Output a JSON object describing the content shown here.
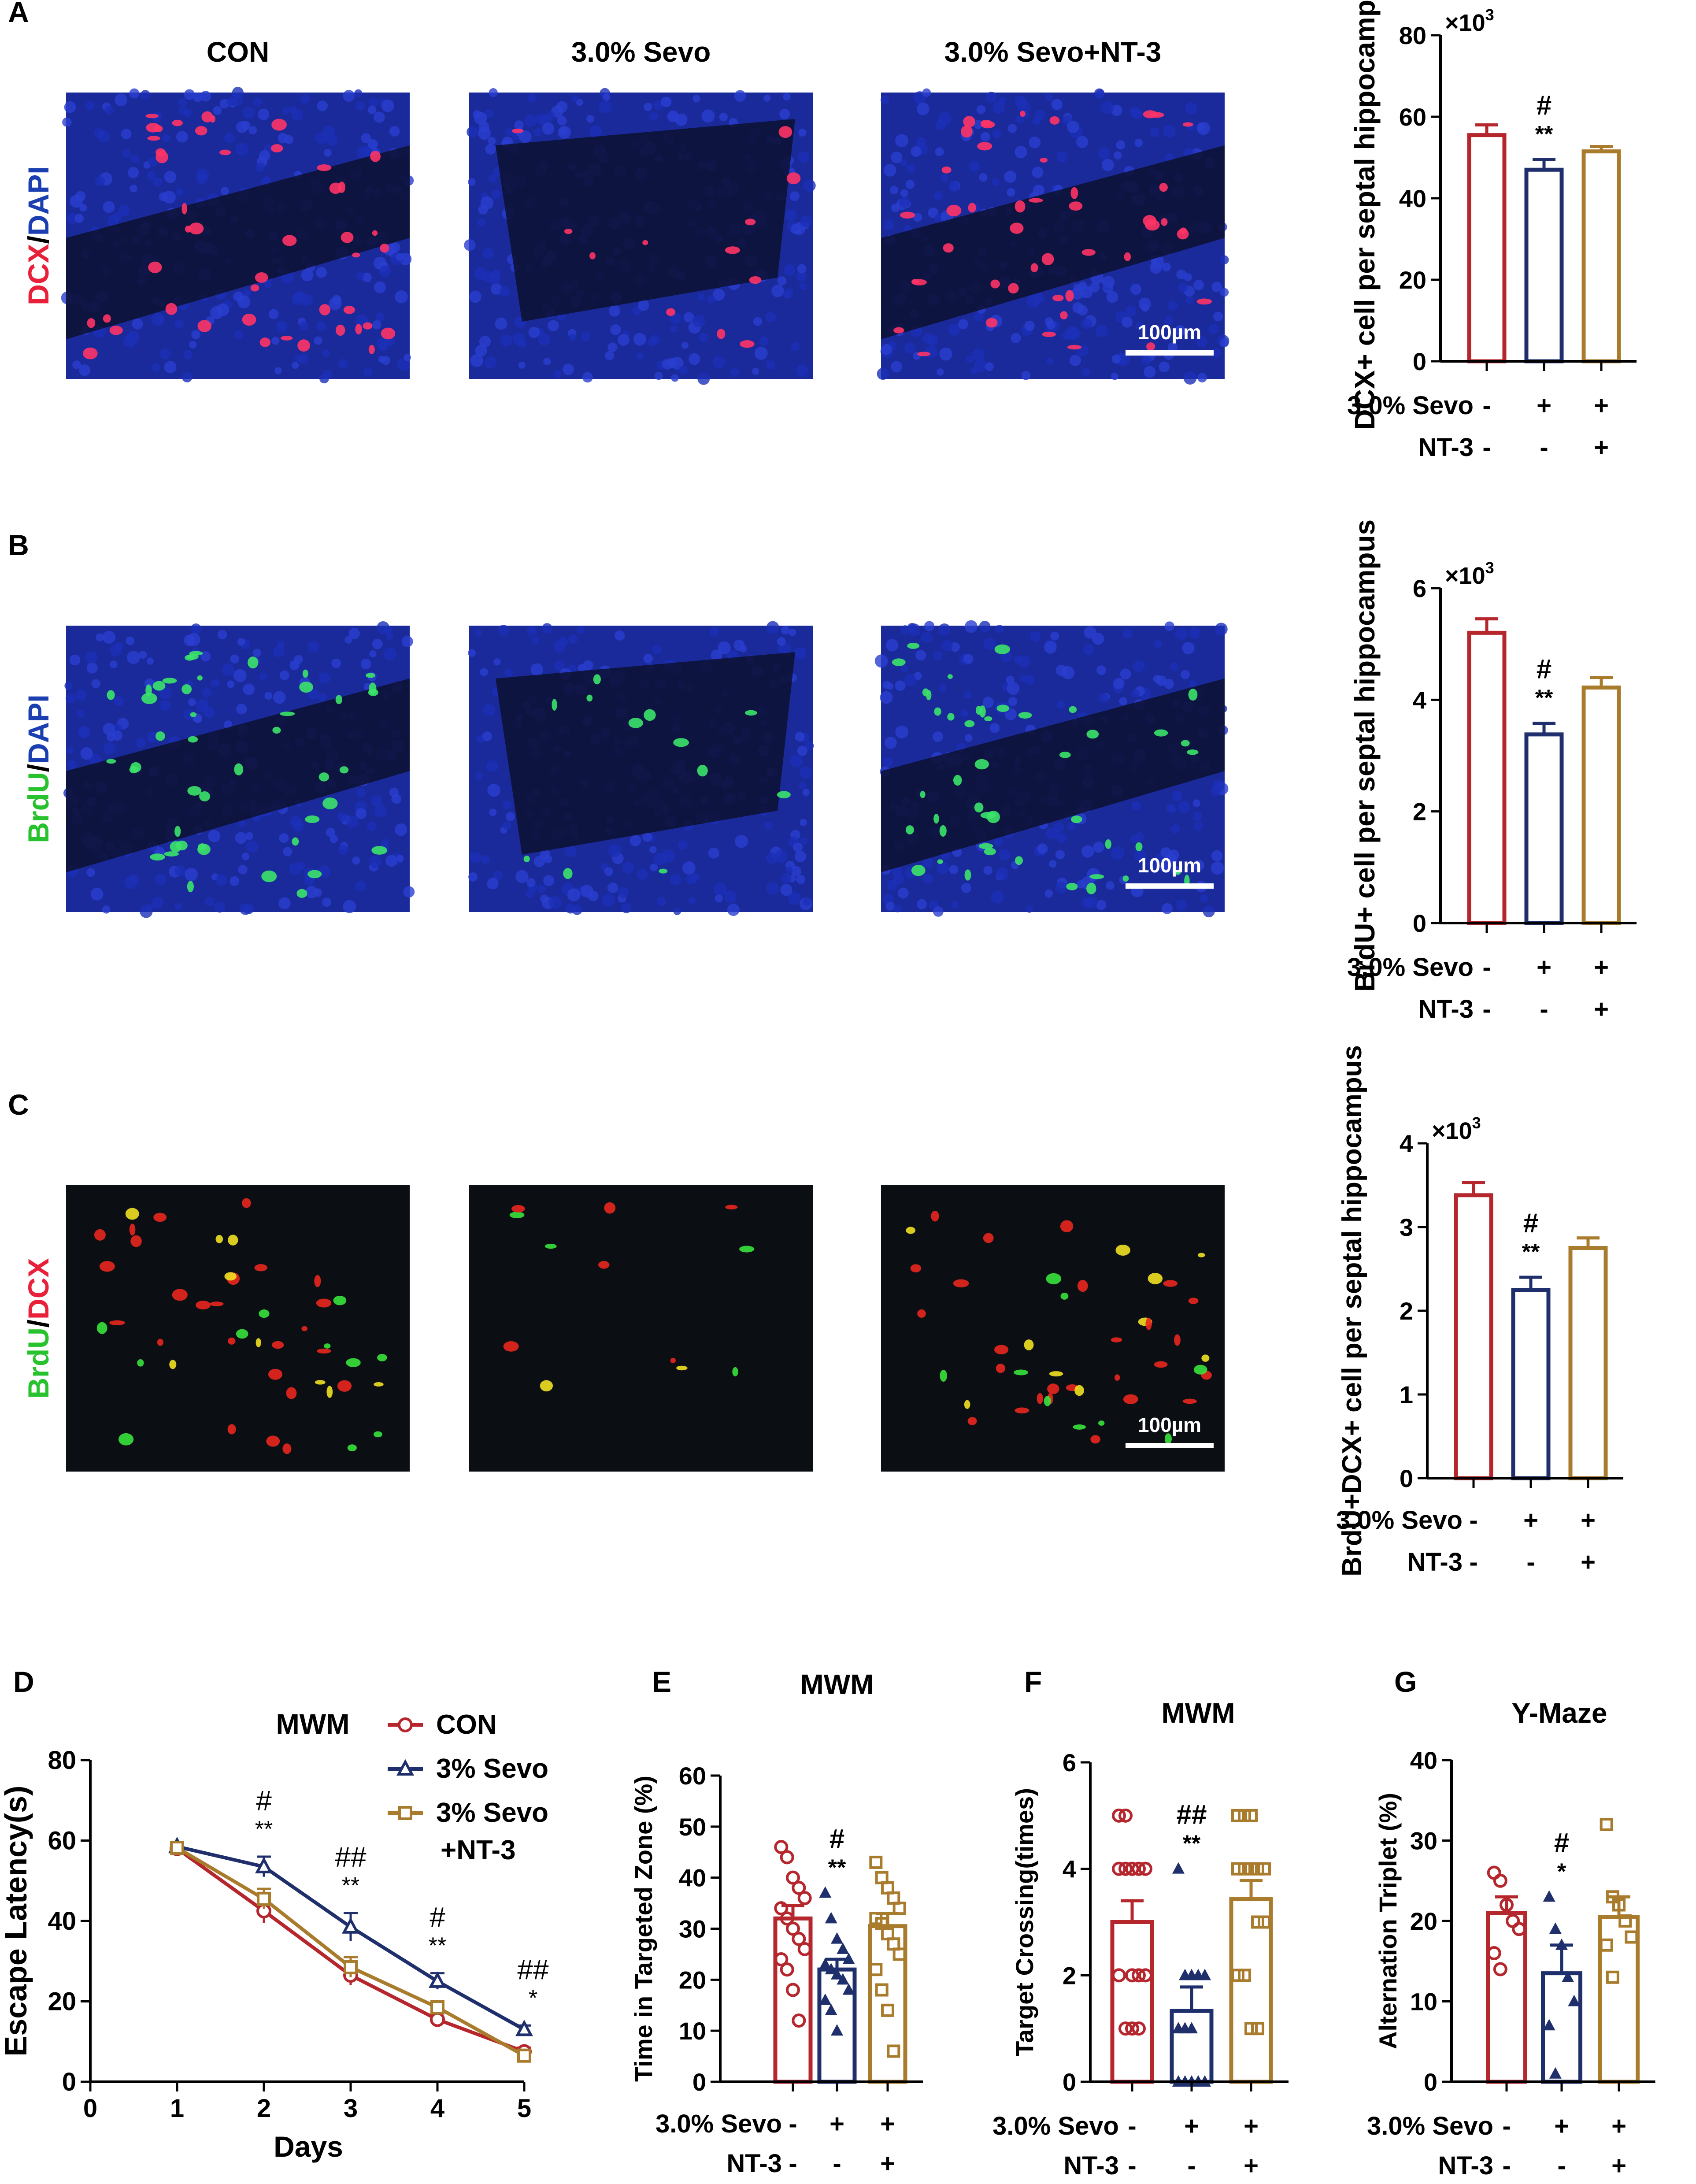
{
  "colors": {
    "con": "#b5262d",
    "sevo": "#1f2f6b",
    "nt3": "#a97b2c",
    "dapi_bg": "#1a2a9a",
    "dark_bg": "#0b0f14",
    "scale": "#ffffff",
    "red_label": "#e8203a",
    "green_label": "#27c22d",
    "blue_label": "#1b3fb0"
  },
  "panels_img": {
    "columns": [
      "CON",
      "3.0% Sevo",
      "3.0% Sevo+NT-3"
    ],
    "scale_bar": "100µm",
    "rows": [
      {
        "letter": "A",
        "stain1": "DCX",
        "sep": "/",
        "stain2": "DAPI",
        "bg": "dapi",
        "marker": "red"
      },
      {
        "letter": "B",
        "stain1": "BrdU",
        "sep": "/",
        "stain2": "DAPI",
        "bg": "dapi",
        "marker": "green"
      },
      {
        "letter": "C",
        "stain1": "BrdU",
        "sep": "/",
        "stain2": "DCX",
        "bg": "dark",
        "marker": "mixed"
      }
    ]
  },
  "group_rows": {
    "row1_label": "3.0% Sevo",
    "row1_values": [
      "-",
      "+",
      "+"
    ],
    "row2_label": "NT-3",
    "row2_values": [
      "-",
      "-",
      "+"
    ]
  },
  "chart_data": [
    {
      "panel": "A",
      "type": "bar",
      "ylabel": "DCX+ cell per septal hippocampus",
      "exponent_label": "×10",
      "exponent": "3",
      "ylim": [
        0,
        80
      ],
      "yticks": [
        0,
        20,
        40,
        60,
        80
      ],
      "values": [
        55.5,
        47,
        51.5
      ],
      "errors": [
        2.5,
        2.5,
        1.2
      ],
      "annotations": [
        "",
        "#|**",
        ""
      ]
    },
    {
      "panel": "B",
      "type": "bar",
      "ylabel": "BrdU+ cell per septal hippocampus",
      "exponent_label": "×10",
      "exponent": "3",
      "ylim": [
        0,
        6
      ],
      "yticks": [
        0,
        2,
        4,
        6
      ],
      "values": [
        5.2,
        3.38,
        4.22
      ],
      "errors": [
        0.25,
        0.2,
        0.18
      ],
      "annotations": [
        "",
        "#|**",
        ""
      ]
    },
    {
      "panel": "C",
      "type": "bar",
      "ylabel": "BrdU+DCX+ cell per septal hippocampus",
      "exponent_label": "×10",
      "exponent": "3",
      "ylim": [
        0,
        4
      ],
      "yticks": [
        0,
        1,
        2,
        3,
        4
      ],
      "values": [
        3.38,
        2.25,
        2.75
      ],
      "errors": [
        0.15,
        0.15,
        0.12
      ],
      "annotations": [
        "",
        "#|**",
        ""
      ]
    },
    {
      "panel": "D",
      "type": "line",
      "title": "MWM",
      "xlabel": "Days",
      "ylabel": "Escape Latency(s)",
      "xlim": [
        0,
        5
      ],
      "xticks": [
        0,
        1,
        2,
        3,
        4,
        5
      ],
      "ylim": [
        0,
        80
      ],
      "yticks": [
        0,
        20,
        40,
        60,
        80
      ],
      "x": [
        1,
        2,
        3,
        4,
        5
      ],
      "series": [
        {
          "name": "CON",
          "values": [
            58,
            42.5,
            26.5,
            15.5,
            7.5
          ],
          "errors": [
            1.0,
            3.0,
            2.5,
            1.5,
            1.0
          ]
        },
        {
          "name": "3% Sevo",
          "values": [
            58.5,
            53.5,
            38.5,
            25,
            13
          ],
          "errors": [
            1.0,
            2.5,
            3.5,
            2.0,
            1.0
          ]
        },
        {
          "name": "3% Sevo +NT-3",
          "values": [
            58.2,
            45.5,
            28.5,
            18.5,
            6.5
          ],
          "errors": [
            1.0,
            2.5,
            2.5,
            1.5,
            1.0
          ]
        }
      ],
      "legend": [
        "CON",
        "3% Sevo",
        "3% Sevo",
        "+NT-3"
      ],
      "annotations": [
        {
          "x": 2,
          "lines": [
            "#",
            "**"
          ]
        },
        {
          "x": 3,
          "lines": [
            "##",
            "**"
          ]
        },
        {
          "x": 4,
          "lines": [
            "#",
            "**"
          ]
        },
        {
          "x": 5,
          "lines": [
            "##",
            "*"
          ]
        }
      ]
    },
    {
      "panel": "E",
      "type": "bar",
      "title": "MWM",
      "ylabel": "Time in Targeted Zone (%)",
      "ylim": [
        0,
        60
      ],
      "yticks": [
        0,
        10,
        20,
        30,
        40,
        50,
        60
      ],
      "values": [
        32,
        22,
        30.5
      ],
      "errors": [
        2.5,
        2.0,
        2.5
      ],
      "points": [
        [
          46,
          44,
          40,
          38,
          36,
          34,
          32,
          30,
          28,
          26,
          24,
          22,
          18,
          12
        ],
        [
          37,
          32,
          28,
          26,
          24,
          23,
          22,
          21,
          20,
          18,
          16,
          14,
          10
        ],
        [
          43,
          40,
          38,
          36,
          34,
          32,
          31,
          29,
          27,
          25,
          22,
          18,
          14,
          6
        ]
      ],
      "annotations": [
        "",
        "#|**",
        ""
      ]
    },
    {
      "panel": "F",
      "type": "bar",
      "title": "MWM",
      "ylabel": "Target Crossing(times)",
      "ylim": [
        0,
        6
      ],
      "yticks": [
        0,
        2,
        4,
        6
      ],
      "values": [
        3.0,
        1.33,
        3.43
      ],
      "errors": [
        0.4,
        0.45,
        0.35
      ],
      "points": [
        [
          5,
          5,
          4,
          4,
          4,
          4,
          4,
          2,
          2,
          2,
          2,
          1,
          1,
          1
        ],
        [
          4,
          2,
          2,
          2,
          2,
          1,
          1,
          1,
          0,
          0,
          0,
          0,
          0,
          0
        ],
        [
          5,
          5,
          5,
          4,
          4,
          4,
          4,
          4,
          3,
          3,
          2,
          2,
          1,
          1
        ]
      ],
      "annotations": [
        "",
        "##|**",
        ""
      ]
    },
    {
      "panel": "G",
      "type": "bar",
      "title": "Y-Maze",
      "ylabel": "Alternation Triplet (%)",
      "ylim": [
        0,
        40
      ],
      "yticks": [
        0,
        10,
        20,
        30,
        40
      ],
      "values": [
        21,
        13.5,
        20.5
      ],
      "errors": [
        2.0,
        3.5,
        2.5
      ],
      "points": [
        [
          26,
          25,
          22,
          20,
          19,
          16,
          14
        ],
        [
          23,
          19,
          17,
          13,
          10,
          7,
          1
        ],
        [
          32,
          23,
          22,
          20,
          18,
          17,
          13
        ]
      ],
      "annotations": [
        "",
        "#|*",
        ""
      ]
    }
  ],
  "bottom_letters": [
    "D",
    "E",
    "F",
    "G"
  ]
}
